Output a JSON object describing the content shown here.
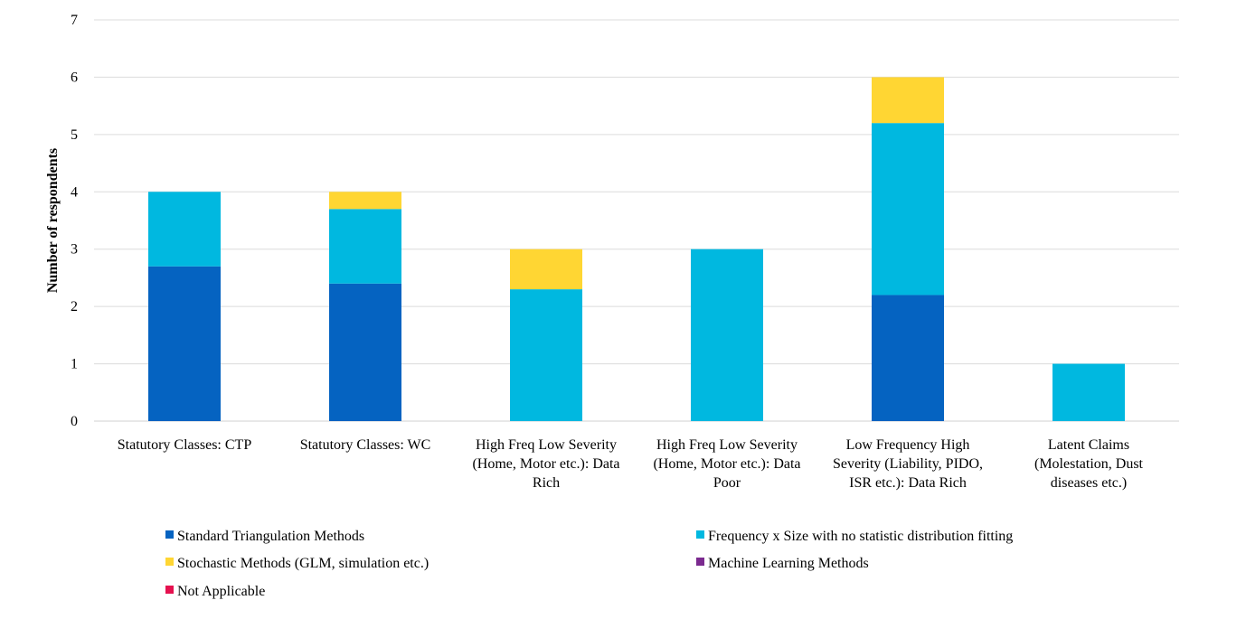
{
  "chart_data": {
    "type": "bar",
    "stacked": true,
    "title": "",
    "xlabel": "",
    "ylabel": "Number of respondents",
    "ylim": [
      0,
      7
    ],
    "yticks": [
      0,
      1,
      2,
      3,
      4,
      5,
      6,
      7
    ],
    "grid": true,
    "legend_position": "bottom",
    "categories": [
      [
        "Statutory Classes: CTP"
      ],
      [
        "Statutory Classes: WC"
      ],
      [
        "High Freq Low Severity",
        "(Home, Motor etc.): Data",
        "Rich"
      ],
      [
        "High Freq Low Severity",
        "(Home, Motor etc.): Data",
        "Poor"
      ],
      [
        "Low Frequency High",
        "Severity (Liability, PIDO,",
        "ISR etc.): Data Rich"
      ],
      [
        "Latent Claims",
        "(Molestation, Dust",
        "diseases etc.)"
      ]
    ],
    "series": [
      {
        "name": "Standard Triangulation Methods",
        "color": "#0563C1",
        "values": [
          2.7,
          2.4,
          0,
          0,
          2.2,
          0
        ]
      },
      {
        "name": "Frequency x Size with no statistic distribution fitting",
        "color": "#00B8E0",
        "values": [
          1.3,
          1.3,
          2.3,
          3.0,
          3.0,
          1.0
        ]
      },
      {
        "name": "Stochastic Methods (GLM, simulation etc.)",
        "color": "#FFD633",
        "values": [
          0,
          0.3,
          0.7,
          0,
          0.8,
          0
        ]
      },
      {
        "name": "Machine Learning Methods",
        "color": "#7B2A8F",
        "values": [
          0,
          0,
          0,
          0,
          0,
          0
        ]
      },
      {
        "name": "Not Applicable",
        "color": "#E5114F",
        "values": [
          0,
          0,
          0,
          0,
          0,
          0
        ]
      }
    ]
  }
}
